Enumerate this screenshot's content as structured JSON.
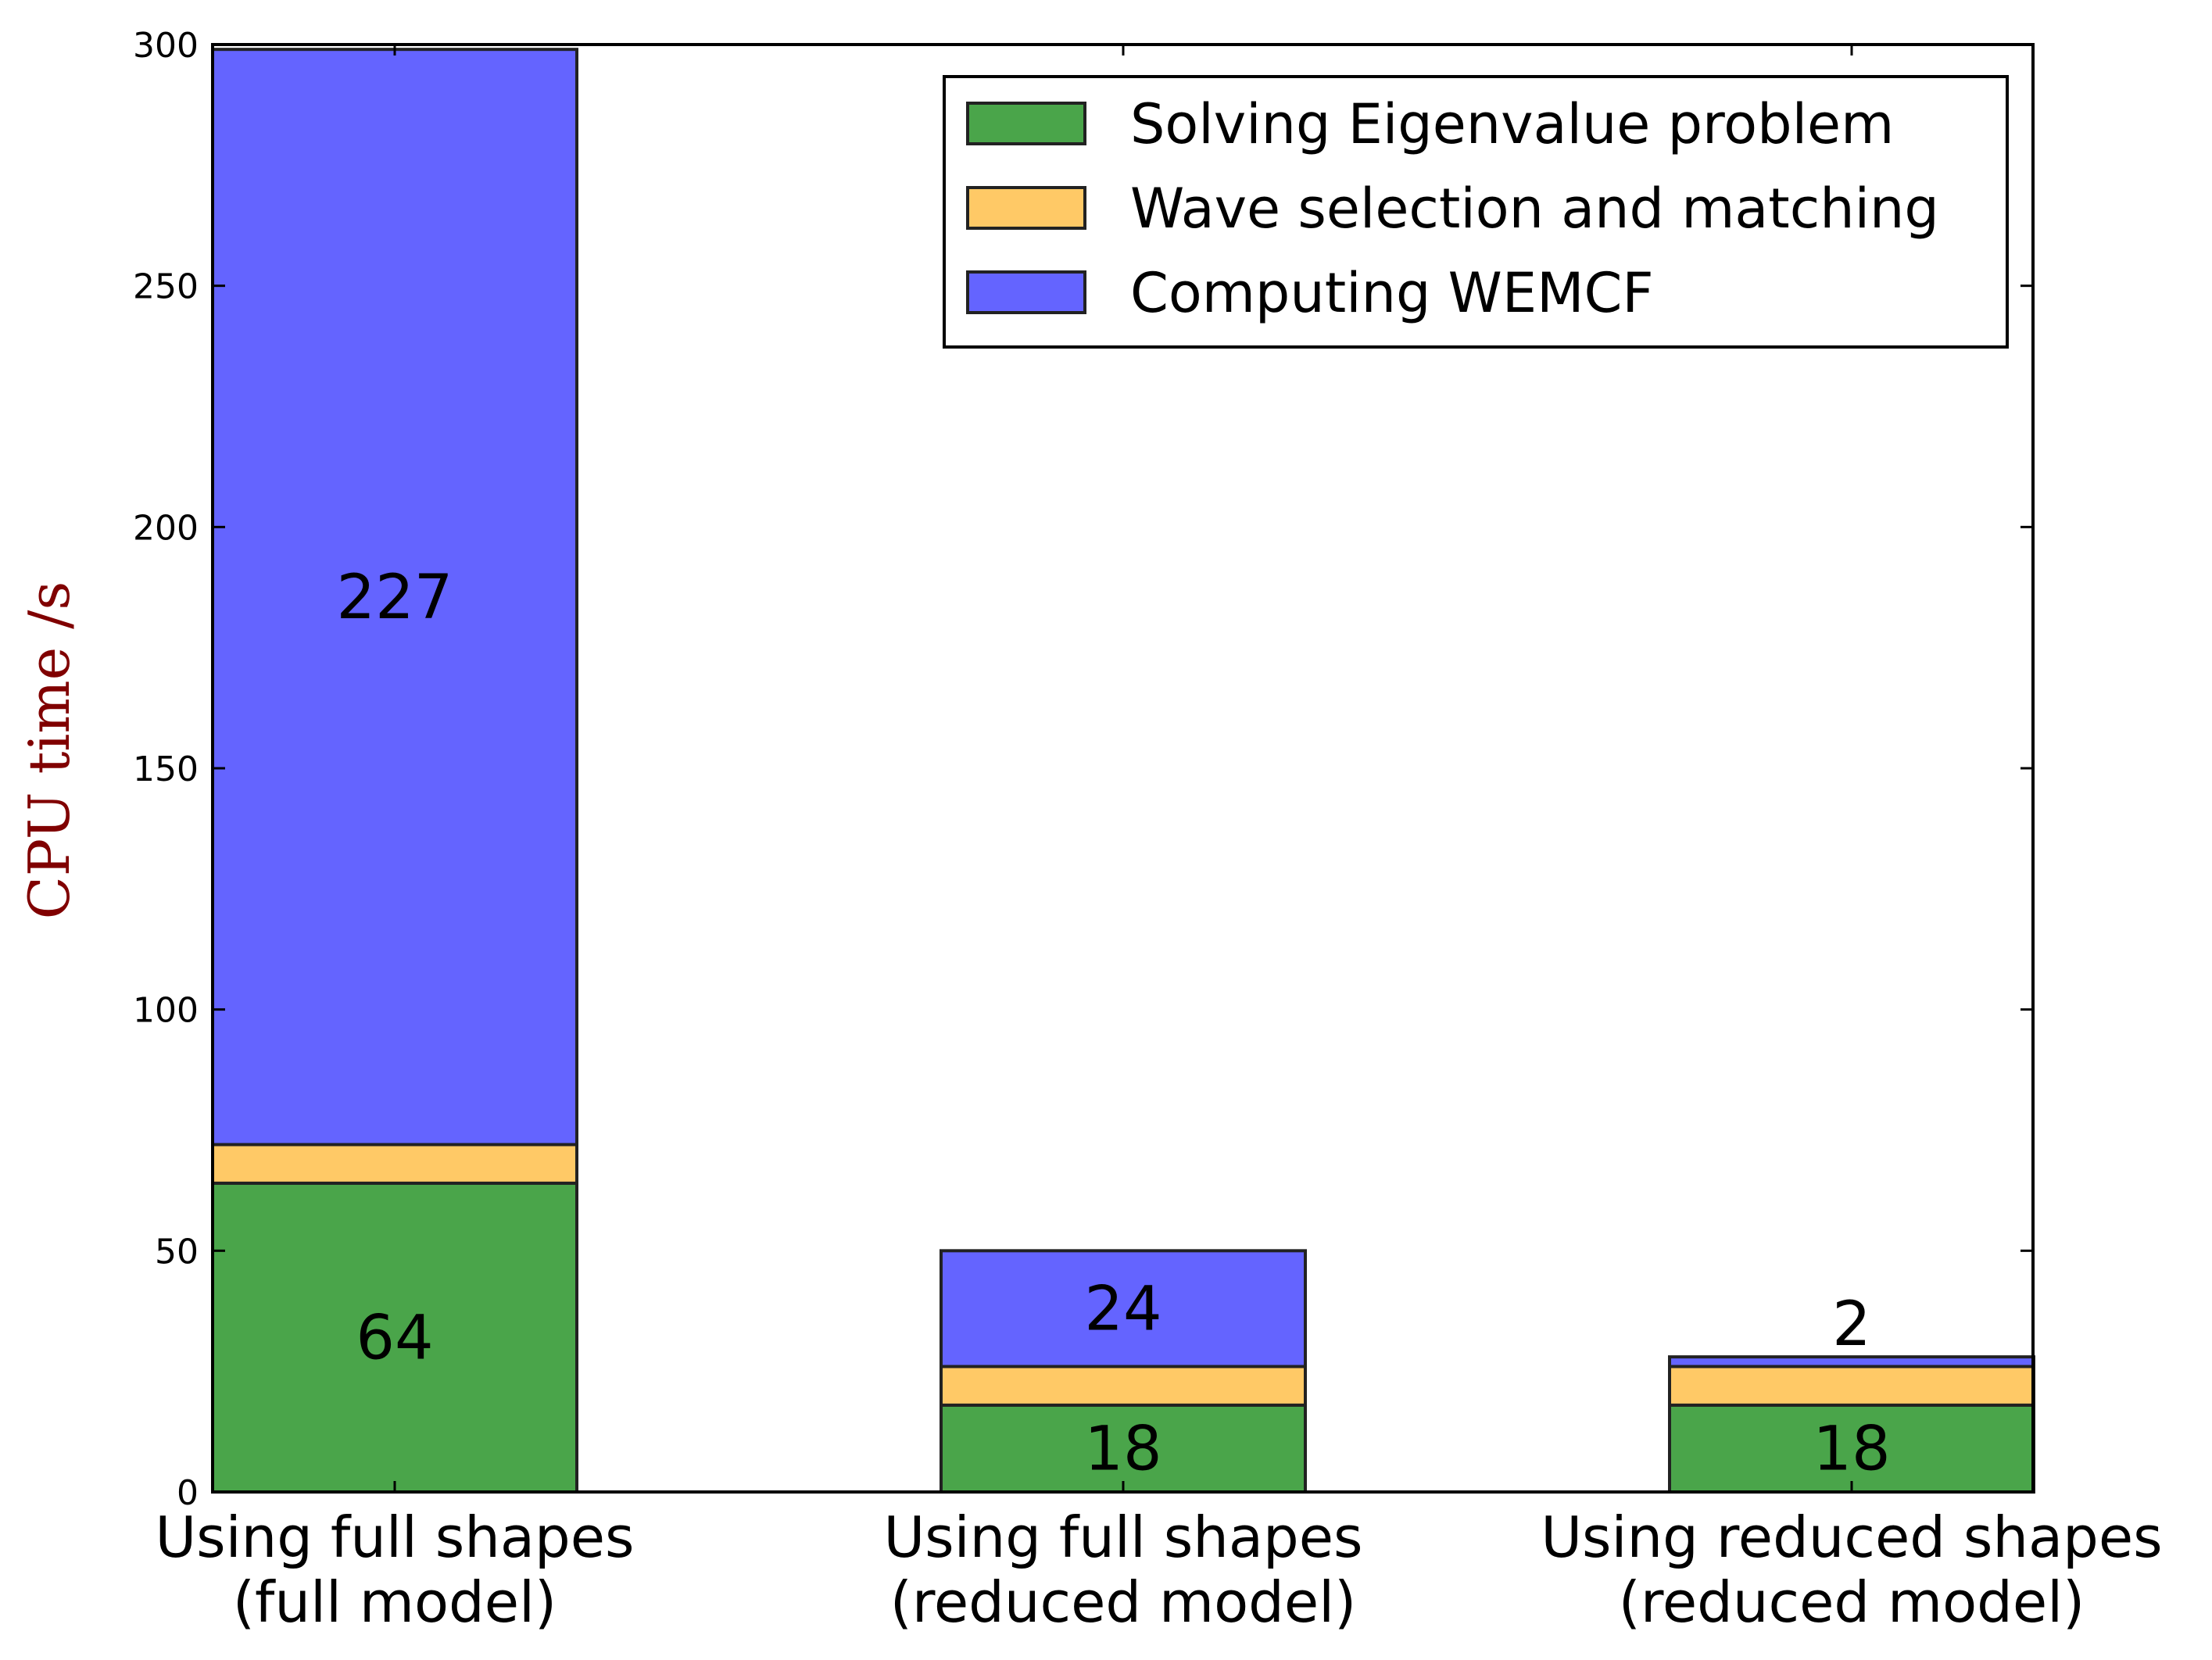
{
  "chart_data": {
    "type": "bar",
    "stacked": true,
    "title": "",
    "xlabel": "",
    "ylabel": "CPU time /s",
    "ylabel_color": "#800000",
    "ylim": [
      0,
      300
    ],
    "yticks": [
      0,
      50,
      100,
      150,
      200,
      250,
      300
    ],
    "grid": false,
    "legend_position": "top-right",
    "categories": [
      [
        "Using full shapes",
        "(full model)"
      ],
      [
        "Using full shapes",
        "(reduced model)"
      ],
      [
        "Using reduced shapes",
        "(reduced model)"
      ]
    ],
    "series": [
      {
        "name": "Solving Eigenvalue problem",
        "color": "#4aa54a",
        "values": [
          64,
          18,
          18
        ],
        "labels": [
          "64",
          "18",
          "18"
        ]
      },
      {
        "name": "Wave selection and matching",
        "color": "#ffc966",
        "values": [
          8,
          8,
          8
        ],
        "labels": [
          "",
          "",
          ""
        ]
      },
      {
        "name": "Computing WEMCF",
        "color": "#6464ff",
        "values": [
          227,
          24,
          2
        ],
        "labels": [
          "227",
          "24",
          "2"
        ]
      }
    ]
  }
}
